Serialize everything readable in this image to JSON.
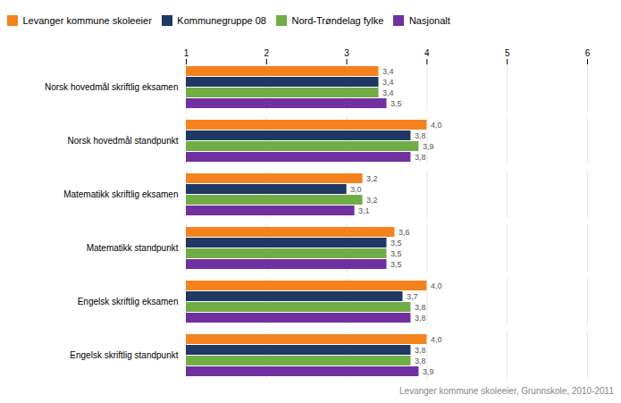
{
  "chart_data": {
    "type": "bar",
    "orientation": "horizontal",
    "categories": [
      "Norsk hovedmål skriftlig eksamen",
      "Norsk hovedmål standpunkt",
      "Matematikk skriftlig eksamen",
      "Matematikk standpunkt",
      "Engelsk skriftlig eksamen",
      "Engelsk skriftlig standpunkt"
    ],
    "series": [
      {
        "name": "Levanger kommune skoleeier",
        "color": "#F4831F",
        "values": [
          3.4,
          4.0,
          3.2,
          3.6,
          4.0,
          4.0
        ],
        "value_labels": [
          "3,4",
          "4,0",
          "3,2",
          "3,6",
          "4,0",
          "4,0"
        ]
      },
      {
        "name": "Kommunegruppe 08",
        "color": "#1F3864",
        "values": [
          3.4,
          3.8,
          3.0,
          3.5,
          3.7,
          3.8
        ],
        "value_labels": [
          "3,4",
          "3,8",
          "3,0",
          "3,5",
          "3,7",
          "3,8"
        ]
      },
      {
        "name": "Nord-Trøndelag fylke",
        "color": "#70AD47",
        "values": [
          3.4,
          3.9,
          3.2,
          3.5,
          3.8,
          3.8
        ],
        "value_labels": [
          "3,4",
          "3,9",
          "3,2",
          "3,5",
          "3,8",
          "3,8"
        ]
      },
      {
        "name": "Nasjonalt",
        "color": "#7030A0",
        "values": [
          3.5,
          3.8,
          3.1,
          3.5,
          3.8,
          3.9
        ],
        "value_labels": [
          "3,5",
          "3,8",
          "3,1",
          "3,5",
          "3,8",
          "3,9"
        ]
      }
    ],
    "xlim": [
      1,
      6
    ],
    "xticks": [
      1,
      2,
      3,
      4,
      5,
      6
    ],
    "grid": true,
    "legend": "upper left",
    "data_labels": true,
    "annotations": [
      "Levanger kommune skoleeier, Grunnskole, 2010-2011"
    ]
  }
}
